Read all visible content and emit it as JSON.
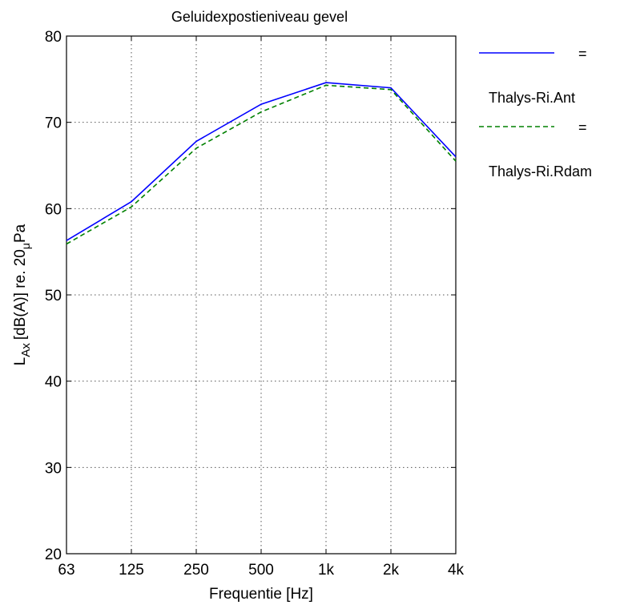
{
  "chart_data": {
    "type": "line",
    "title": "Geluidexpostieniveau gevel",
    "xlabel": "Frequentie [Hz]",
    "ylabel": {
      "main": "L",
      "sub": "Ax",
      "unit": "[dB(A)]  re. 20",
      "mu": "μ",
      "tail": "Pa"
    },
    "categories": [
      "63",
      "125",
      "250",
      "500",
      "1k",
      "2k",
      "4k"
    ],
    "x_scale": "log",
    "ylim": [
      20,
      80
    ],
    "yticks": [
      "20",
      "30",
      "40",
      "50",
      "60",
      "70",
      "80"
    ],
    "grid": true,
    "legend_position": "right, outside plot",
    "series": [
      {
        "name": "Thalys-Ri.Ant",
        "legend_eq": "=",
        "color": "#0000ff",
        "style": "solid",
        "values": [
          56.3,
          60.8,
          67.8,
          72.1,
          74.6,
          74.0,
          66.0
        ]
      },
      {
        "name": "Thalys-Ri.Rdam",
        "legend_eq": "=",
        "color": "#008000",
        "style": "dashed",
        "values": [
          55.9,
          60.2,
          67.0,
          71.2,
          74.3,
          73.8,
          65.5
        ]
      }
    ]
  }
}
